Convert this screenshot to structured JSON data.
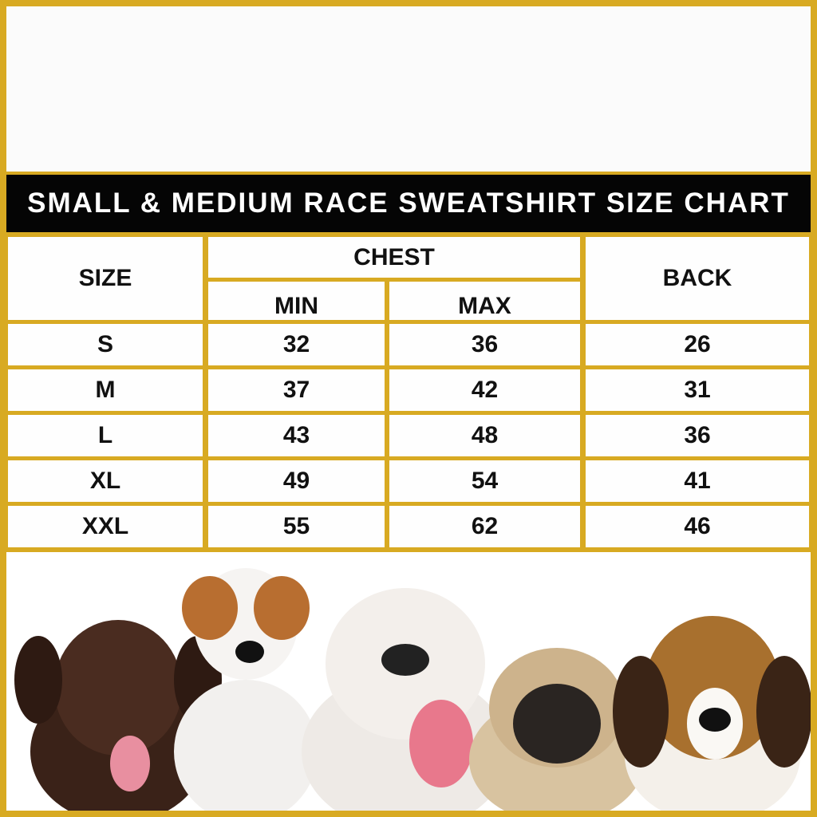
{
  "header": {
    "title": "SMALL & MEDIUM RACE SWEATSHIRT SIZE CHART"
  },
  "table": {
    "columns": {
      "size": "SIZE",
      "chest": "CHEST",
      "min": "MIN",
      "max": "MAX",
      "back": "BACK"
    },
    "rows": [
      [
        "S",
        32,
        36,
        26
      ],
      [
        "M",
        37,
        42,
        31
      ],
      [
        "L",
        43,
        48,
        36
      ],
      [
        "XL",
        49,
        54,
        41
      ],
      [
        "XXL",
        55,
        62,
        46
      ]
    ]
  }
}
